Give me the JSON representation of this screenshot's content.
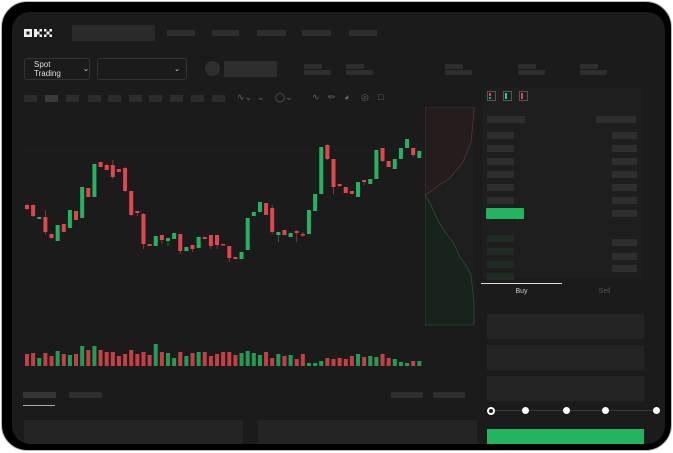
{
  "header": {
    "logo": "OKX",
    "nav": [
      "",
      "",
      "",
      "",
      ""
    ]
  },
  "market_bar": {
    "mode_selector": "Spot Trading",
    "pair_selector": "",
    "chevron": "chevron-down-icon"
  },
  "toolbar": {
    "icons": [
      "line-icon",
      "pencil-icon",
      "gauge-icon",
      "target-icon",
      "fullscreen-icon"
    ]
  },
  "order_book": {
    "view_icons": [
      "both-sides-icon",
      "bids-icon",
      "asks-icon"
    ]
  },
  "trade_panel": {
    "tabs": [
      {
        "label": "Buy",
        "active": true
      },
      {
        "label": "Sell",
        "active": false
      }
    ],
    "leverage_slider": {
      "value": 0,
      "stops": 5
    }
  },
  "colors": {
    "up": "#22b45e",
    "down": "#e0474c",
    "background": "#1b1b1b"
  },
  "chart": {
    "candles": [
      [
        97,
        93,
        98,
        92
      ],
      [
        97,
        86,
        98,
        85
      ],
      [
        83,
        85,
        85,
        83
      ],
      [
        85,
        70,
        92,
        68
      ],
      [
        68,
        64,
        68,
        63
      ],
      [
        61,
        77,
        61,
        79
      ],
      [
        78,
        70,
        78,
        70
      ],
      [
        74,
        92,
        74,
        94
      ],
      [
        91,
        82,
        91,
        82
      ],
      [
        84,
        115,
        84,
        124
      ],
      [
        114,
        105,
        114,
        105
      ],
      [
        105,
        138,
        105,
        152
      ],
      [
        140,
        135,
        140,
        135
      ],
      [
        137,
        132,
        138,
        132
      ],
      [
        137,
        125,
        142,
        123
      ],
      [
        133,
        130,
        133,
        130
      ],
      [
        134,
        111,
        135,
        110
      ],
      [
        111,
        87,
        111,
        86
      ],
      [
        91,
        89,
        91,
        86
      ],
      [
        88,
        58,
        89,
        53
      ],
      [
        58,
        56,
        58,
        56
      ],
      [
        56,
        66,
        60,
        66
      ],
      [
        67,
        62,
        67,
        58
      ],
      [
        61,
        64,
        61,
        56
      ],
      [
        63,
        69,
        63,
        71
      ],
      [
        68,
        51,
        68,
        48
      ],
      [
        51,
        55,
        55,
        51
      ],
      [
        57,
        53,
        57,
        50
      ],
      [
        54,
        65,
        54,
        67
      ],
      [
        65,
        63,
        65,
        63
      ],
      [
        67,
        56,
        67,
        53
      ],
      [
        67,
        57,
        67,
        53
      ],
      [
        58,
        57,
        58,
        57
      ],
      [
        56,
        44,
        56,
        40
      ],
      [
        45,
        43,
        45,
        43
      ],
      [
        43,
        50,
        43,
        50
      ],
      [
        52,
        84,
        52,
        90
      ],
      [
        86,
        90,
        90,
        86
      ],
      [
        90,
        100,
        90,
        102
      ],
      [
        99,
        87,
        99,
        87
      ],
      [
        94,
        70,
        97,
        68
      ],
      [
        67,
        70,
        70,
        60
      ],
      [
        72,
        67,
        72,
        67
      ],
      [
        65,
        69,
        69,
        65
      ],
      [
        71,
        69,
        72,
        60
      ],
      [
        68,
        67,
        70,
        65
      ],
      [
        68,
        92,
        68,
        92
      ],
      [
        91,
        108,
        93,
        108
      ],
      [
        108,
        155,
        108,
        171
      ],
      [
        157,
        143,
        158,
        142
      ],
      [
        143,
        115,
        143,
        108
      ],
      [
        118,
        116,
        118,
        115
      ],
      [
        115,
        109,
        115,
        109
      ],
      [
        111,
        108,
        111,
        108
      ],
      [
        105,
        120,
        108,
        120
      ],
      [
        122,
        120,
        122,
        117
      ],
      [
        118,
        123,
        118,
        125
      ],
      [
        123,
        152,
        123,
        152
      ],
      [
        154,
        141,
        154,
        140
      ],
      [
        141,
        135,
        141,
        135
      ],
      [
        133,
        143,
        133,
        150
      ],
      [
        143,
        154,
        143,
        159
      ],
      [
        154,
        163,
        154,
        168
      ],
      [
        154,
        147,
        154,
        145
      ],
      [
        144,
        151,
        144,
        158
      ]
    ],
    "volume": [
      12,
      13,
      8,
      13,
      10,
      15,
      12,
      11,
      12,
      20,
      16,
      20,
      16,
      14,
      14,
      10,
      12,
      16,
      12,
      14,
      11,
      22,
      14,
      13,
      8,
      14,
      10,
      13,
      14,
      14,
      10,
      12,
      14,
      14,
      11,
      13,
      15,
      13,
      11,
      14,
      8,
      12,
      10,
      11,
      7,
      12,
      3,
      3,
      5,
      8,
      7,
      8,
      7,
      10,
      12,
      9,
      10,
      9,
      12,
      8,
      7,
      4,
      3,
      5,
      5
    ]
  }
}
